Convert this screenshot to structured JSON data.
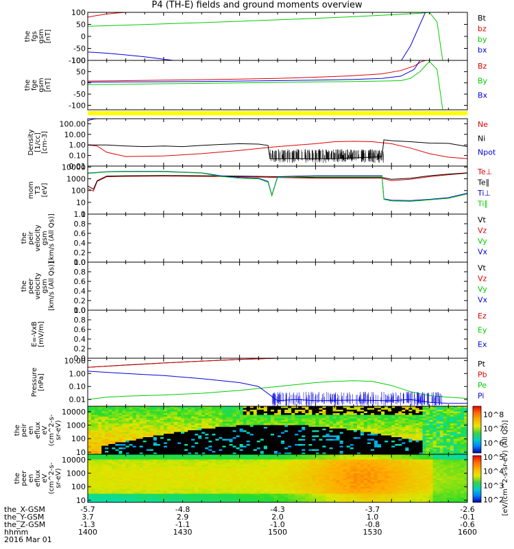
{
  "title": "P4 (TH-E) fields and ground moments overview",
  "colors": {
    "black": "#000000",
    "red": "#dd0000",
    "green": "#00cc00",
    "blue": "#0000dd",
    "yellow": "#ffff00"
  },
  "chart_data": {
    "type": "line",
    "x_range": [
      1400,
      1600
    ],
    "panels": [
      {
        "id": "fgs",
        "ylabel": [
          "the",
          "fgs",
          "gsm",
          "[nT]"
        ],
        "yrange": [
          -100,
          100
        ],
        "yticks": [
          "100",
          "50",
          "0",
          "-50",
          "-100"
        ],
        "legend": [
          {
            "label": "Bt",
            "color": "black"
          },
          {
            "label": "bz",
            "color": "red"
          },
          {
            "label": "by",
            "color": "green"
          },
          {
            "label": "bx",
            "color": "blue"
          }
        ],
        "series": [
          {
            "name": "bz",
            "color": "red",
            "x": [
              1400,
              1405,
              1410,
              1415,
              1420,
              1425
            ],
            "y": [
              80,
              87,
              93,
              97,
              100,
              103
            ]
          },
          {
            "name": "by",
            "color": "green",
            "x": [
              1400,
              1420,
              1440,
              1460,
              1480,
              1500,
              1520,
              1540,
              1560,
              1575,
              1580,
              1584,
              1587
            ],
            "y": [
              42,
              47,
              52,
              57,
              63,
              69,
              75,
              82,
              90,
              96,
              100,
              60,
              -100
            ]
          },
          {
            "name": "bx",
            "color": "blue",
            "x": [
              1400,
              1410,
              1420,
              1430,
              1440,
              1445,
              1448,
              1565,
              1570,
              1575,
              1578
            ],
            "y": [
              -65,
              -70,
              -77,
              -85,
              -95,
              -100,
              -103,
              -103,
              -40,
              50,
              103
            ]
          }
        ]
      },
      {
        "id": "fge",
        "ylabel": [
          "the",
          "fge",
          "gsm",
          "[nT]"
        ],
        "yrange": [
          -120,
          100
        ],
        "yticks": [
          "100",
          "50",
          "0",
          "-50",
          "-100"
        ],
        "legend": [
          {
            "label": "Bz",
            "color": "red"
          },
          {
            "label": "By",
            "color": "green"
          },
          {
            "label": "Bx",
            "color": "blue"
          }
        ],
        "series": [
          {
            "name": "Bz",
            "color": "red",
            "x": [
              1400,
              1420,
              1440,
              1460,
              1480,
              1500,
              1520,
              1540,
              1555,
              1565,
              1572,
              1576,
              1578
            ],
            "y": [
              8,
              10,
              12,
              14,
              17,
              20,
              25,
              32,
              40,
              55,
              75,
              95,
              100
            ]
          },
          {
            "name": "By",
            "color": "green",
            "x": [
              1400,
              1420,
              1440,
              1460,
              1480,
              1500,
              1520,
              1540,
              1555,
              1565,
              1570,
              1575,
              1580,
              1584,
              1587
            ],
            "y": [
              -8,
              -6,
              -4,
              -2,
              0,
              2,
              4,
              6,
              8,
              10,
              20,
              50,
              95,
              60,
              -120
            ]
          },
          {
            "name": "Bx",
            "color": "blue",
            "x": [
              1400,
              1420,
              1440,
              1460,
              1480,
              1500,
              1520,
              1540,
              1555,
              1565,
              1572,
              1575
            ],
            "y": [
              3,
              4,
              5,
              6,
              8,
              10,
              12,
              15,
              20,
              30,
              60,
              100
            ]
          }
        ]
      },
      {
        "id": "density",
        "ylabel": [
          "Density",
          "[1/cc]",
          "[cm-3]"
        ],
        "ylog": true,
        "yrange": [
          0.01,
          300
        ],
        "yticks": [
          "100.00",
          "10.00",
          "1.00",
          "0.10",
          "0.01"
        ],
        "legend": [
          {
            "label": "Ne",
            "color": "red"
          },
          {
            "label": "Ni",
            "color": "black"
          },
          {
            "label": "Npot",
            "color": "blue"
          }
        ],
        "series": [
          {
            "name": "Ne",
            "color": "red",
            "x": [
              1400,
              1405,
              1410,
              1420,
              1440,
              1460,
              1480,
              1500,
              1520,
              1530,
              1540,
              1550,
              1560,
              1570,
              1580,
              1590,
              1600
            ],
            "y": [
              1.0,
              0.8,
              0.2,
              0.08,
              0.09,
              0.15,
              0.3,
              0.7,
              1.3,
              2.0,
              2.2,
              2.0,
              1.3,
              0.5,
              0.15,
              0.07,
              0.05
            ]
          },
          {
            "name": "Ni",
            "color": "black",
            "x": [
              1400,
              1410,
              1420,
              1430,
              1440,
              1450,
              1460,
              1470,
              1480,
              1490,
              1495,
              1496,
              1510,
              1520,
              1530,
              1540,
              1550,
              1555,
              1556,
              1560,
              1570,
              1580,
              1590,
              1600
            ],
            "y": [
              1.0,
              1.0,
              0.8,
              0.7,
              0.8,
              0.7,
              0.9,
              1.1,
              1.3,
              1.2,
              0.9,
              0.05,
              0.05,
              0.05,
              0.05,
              0.06,
              0.07,
              0.08,
              3.0,
              2.5,
              2.0,
              1.5,
              1.4,
              0.7
            ]
          },
          {
            "name": "Npot",
            "color": "blue",
            "x": [
              1400,
              1403,
              1405
            ],
            "y": [
              200,
              280,
              300
            ]
          }
        ]
      },
      {
        "id": "mom",
        "ylabel": [
          "mom",
          "T3",
          "[eV]"
        ],
        "ylog": true,
        "yrange": [
          1,
          12000
        ],
        "yticks": [
          "10000",
          "1000",
          "100",
          "10",
          "1"
        ],
        "legend": [
          {
            "label": "Te⊥",
            "color": "red"
          },
          {
            "label": "Te∥",
            "color": "black"
          },
          {
            "label": "Ti⊥",
            "color": "blue"
          },
          {
            "label": "Ti∥",
            "color": "green"
          }
        ],
        "series": [
          {
            "name": "Te⊥",
            "color": "red",
            "x": [
              1400,
              1403,
              1405,
              1410,
              1420,
              1440,
              1460,
              1480,
              1500,
              1520,
              1540,
              1555,
              1560,
              1570,
              1580,
              1590,
              1600
            ],
            "y": [
              150,
              90,
              600,
              1500,
              1600,
              1700,
              1600,
              1500,
              1300,
              1100,
              1100,
              1100,
              700,
              900,
              1500,
              2200,
              3000
            ]
          },
          {
            "name": "Te∥",
            "color": "black",
            "x": [
              1400,
              1403,
              1405,
              1410,
              1420,
              1440,
              1460,
              1480,
              1500,
              1520,
              1540,
              1555,
              1560,
              1570,
              1580,
              1590,
              1600
            ],
            "y": [
              250,
              130,
              700,
              1700,
              1800,
              1900,
              1800,
              1700,
              1500,
              1300,
              1300,
              1300,
              900,
              1100,
              1800,
              2500,
              3200
            ]
          },
          {
            "name": "Ti⊥",
            "color": "blue",
            "x": [
              1400,
              1410,
              1420,
              1440,
              1460,
              1470,
              1480,
              1490,
              1495,
              1497,
              1500,
              1510,
              1520,
              1540,
              1555,
              1556,
              1560,
              1570,
              1580,
              1590,
              1600
            ],
            "y": [
              3000,
              4000,
              4200,
              4200,
              3200,
              1800,
              1300,
              1100,
              600,
              40,
              1500,
              1700,
              1800,
              1800,
              1800,
              20,
              15,
              14,
              18,
              25,
              60
            ]
          },
          {
            "name": "Ti∥",
            "color": "green",
            "x": [
              1400,
              1410,
              1420,
              1440,
              1460,
              1470,
              1480,
              1490,
              1495,
              1497,
              1500,
              1510,
              1520,
              1540,
              1555,
              1556,
              1560,
              1570,
              1580,
              1590,
              1600
            ],
            "y": [
              2800,
              3800,
              4000,
              4000,
              3000,
              1600,
              1100,
              1000,
              500,
              35,
              1300,
              1500,
              1600,
              1600,
              1600,
              18,
              13,
              12,
              16,
              22,
              50
            ]
          }
        ]
      },
      {
        "id": "peir-vel",
        "ylabel": [
          "the",
          "peir",
          "velocity",
          "gsm",
          "[km/s (All Qs)]"
        ],
        "yrange": [
          0,
          1
        ],
        "yticks": [
          "1.0",
          "0.8",
          "0.6",
          "0.4",
          "0.2",
          "0.0"
        ],
        "legend": [
          {
            "label": "Vt",
            "color": "black"
          },
          {
            "label": "Vz",
            "color": "red"
          },
          {
            "label": "Vy",
            "color": "green"
          },
          {
            "label": "Vx",
            "color": "blue"
          }
        ],
        "series": []
      },
      {
        "id": "peer-vel",
        "ylabel": [
          "the",
          "peer",
          "velocity",
          "gsm",
          "[km/s (All Qs)]"
        ],
        "yrange": [
          0,
          1
        ],
        "yticks": [
          "1.0",
          "0.8",
          "0.6",
          "0.4",
          "0.2",
          "0.0"
        ],
        "legend": [
          {
            "label": "Vt",
            "color": "black"
          },
          {
            "label": "Vz",
            "color": "red"
          },
          {
            "label": "Vy",
            "color": "green"
          },
          {
            "label": "Vx",
            "color": "blue"
          }
        ],
        "series": []
      },
      {
        "id": "efield",
        "ylabel": [
          "E=-VxB",
          "[mV/m]"
        ],
        "yrange": [
          0,
          1
        ],
        "yticks": [
          "1.0",
          "0.8",
          "0.6",
          "0.4",
          "0.2",
          "0.0"
        ],
        "legend": [
          {
            "label": "Ez",
            "color": "red"
          },
          {
            "label": "Ey",
            "color": "green"
          },
          {
            "label": "Ex",
            "color": "blue"
          }
        ],
        "series": []
      },
      {
        "id": "pressure",
        "ylabel": [
          "Pressure",
          "[nPa]"
        ],
        "ylog": true,
        "yrange": [
          0.003,
          15
        ],
        "yticks": [
          "10.00",
          "1.00",
          "0.10",
          "0.01"
        ],
        "legend": [
          {
            "label": "Pt",
            "color": "black"
          },
          {
            "label": "Pb",
            "color": "red"
          },
          {
            "label": "Pe",
            "color": "green"
          },
          {
            "label": "Pi",
            "color": "blue"
          }
        ],
        "series": [
          {
            "name": "Pt",
            "color": "black",
            "x": [
              1400,
              1420,
              1440,
              1460,
              1480,
              1500,
              1505
            ],
            "y": [
              3.0,
              4.5,
              6.5,
              9.0,
              12,
              15,
              16
            ]
          },
          {
            "name": "Pb",
            "color": "red",
            "x": [
              1400,
              1420,
              1440,
              1460,
              1480,
              1500,
              1505
            ],
            "y": [
              3.0,
              4.4,
              6.4,
              8.9,
              12,
              15,
              16
            ]
          },
          {
            "name": "Pe",
            "color": "green",
            "x": [
              1400,
              1410,
              1420,
              1440,
              1460,
              1480,
              1500,
              1520,
              1530,
              1540,
              1550,
              1560,
              1570,
              1580,
              1590,
              1600
            ],
            "y": [
              0.01,
              0.015,
              0.018,
              0.022,
              0.03,
              0.05,
              0.1,
              0.2,
              0.25,
              0.28,
              0.25,
              0.12,
              0.04,
              0.02,
              0.015,
              0.012
            ]
          },
          {
            "name": "Pi",
            "color": "blue",
            "x": [
              1400,
              1420,
              1440,
              1460,
              1480,
              1490,
              1500,
              1510,
              1520,
              1540,
              1560,
              1570,
              1580,
              1590,
              1600
            ],
            "y": [
              1.5,
              1.0,
              0.7,
              0.4,
              0.2,
              0.1,
              0.008,
              0.01,
              0.008,
              0.009,
              0.008,
              0.01,
              0.006,
              0.005,
              0.005
            ]
          }
        ]
      },
      {
        "id": "peir-eflux",
        "ylabel": [
          "the",
          "peir",
          "en",
          "eflux",
          "eV",
          "(cm^2-s-",
          "sr-eV)"
        ],
        "ylog": true,
        "yrange": [
          7,
          25000
        ],
        "yticks": [
          "10000",
          "1000",
          "100",
          "10"
        ],
        "spectrogram": "ions"
      },
      {
        "id": "peer-eflux",
        "ylabel": [
          "the",
          "peer",
          "en",
          "eflux",
          "eV",
          "(cm^2-s-",
          "sr-eV)"
        ],
        "ylog": true,
        "yrange": [
          7,
          25000
        ],
        "yticks": [
          "10000",
          "1000",
          "100",
          "10"
        ],
        "spectrogram": "electrons"
      }
    ],
    "colorbar": {
      "ticks": [
        "10^8",
        "10^7",
        "10^6",
        "10^5",
        "10^4",
        "10^3",
        "10^2"
      ],
      "label": "[eV/(cm^2-s-sr-eV) (All Qs)]"
    },
    "x_axis_rows": [
      {
        "label": "the_X-GSM",
        "values": [
          "-5.7",
          "-4.8",
          "-4.3",
          "-3.7",
          "-2.6"
        ]
      },
      {
        "label": "the_Y-GSM",
        "values": [
          "3.7",
          "2.9",
          "2.0",
          "1.0",
          "-0.1"
        ]
      },
      {
        "label": "the_Z-GSM",
        "values": [
          "-1.3",
          "-1.1",
          "-1.0",
          "-0.8",
          "-0.6"
        ]
      },
      {
        "label": "hhmm",
        "values": [
          "1400",
          "1430",
          "1500",
          "1530",
          "1600"
        ]
      }
    ],
    "date": "2016 Mar 01"
  }
}
